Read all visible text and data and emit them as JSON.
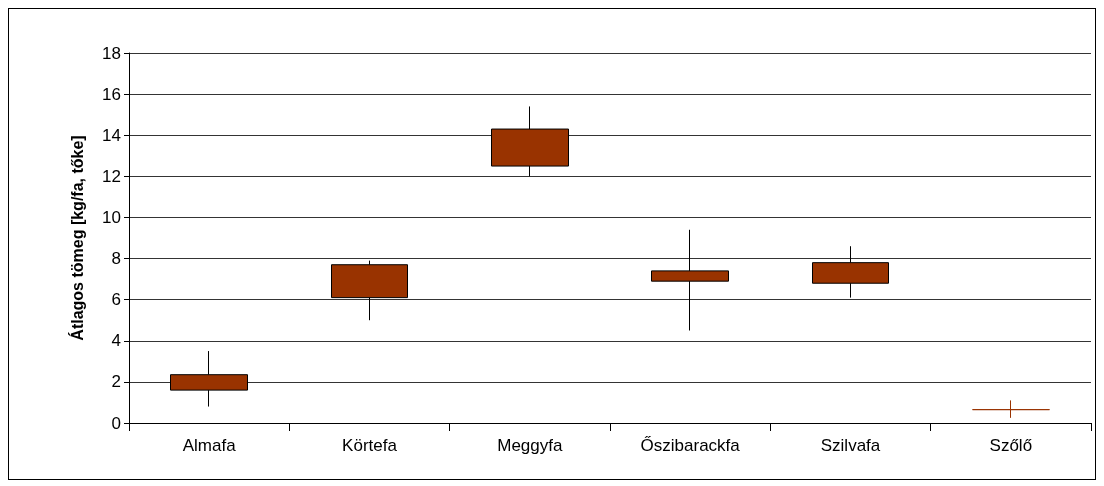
{
  "chart_data": {
    "type": "candlestick",
    "ylabel": "Átlagos tömeg [kg/fa, tőke]",
    "categories": [
      "Almafa",
      "Körtefa",
      "Meggyfa",
      "Őszibarackfa",
      "Szilvafa",
      "Szőlő"
    ],
    "ohlc": [
      [
        1.6,
        3.5,
        0.8,
        2.35
      ],
      [
        6.1,
        7.9,
        5.0,
        7.7
      ],
      [
        12.5,
        15.4,
        12.0,
        14.3
      ],
      [
        6.9,
        9.4,
        4.5,
        7.4
      ],
      [
        6.8,
        8.6,
        6.1,
        7.8
      ],
      [
        0.65,
        1.1,
        0.25,
        0.65
      ]
    ],
    "color": "#993300",
    "ylim": [
      0,
      18
    ],
    "yticks": [
      0,
      2,
      4,
      6,
      8,
      10,
      12,
      14,
      16,
      18
    ],
    "grid": "y"
  }
}
